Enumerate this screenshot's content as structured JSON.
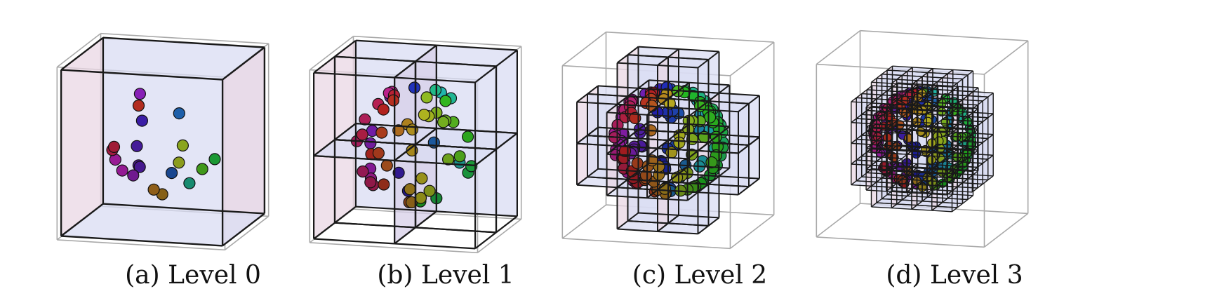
{
  "panels": [
    {
      "label": "(a)",
      "title": "Level 0",
      "level": 0,
      "particle_count": 20
    },
    {
      "label": "(b)",
      "title": "Level 1",
      "level": 1,
      "particle_count": 55
    },
    {
      "label": "(c)",
      "title": "Level 2",
      "level": 2,
      "particle_count": 160
    },
    {
      "label": "(d)",
      "title": "Level 3",
      "level": 3,
      "particle_count": 260
    }
  ],
  "colors": {
    "face_pink": "#ead7e4",
    "face_blue": "#dadcf3",
    "face_lavender": "#d7cfe8",
    "edge": "#1a1a1a",
    "outer_edge_light": "#a9a9a9"
  }
}
